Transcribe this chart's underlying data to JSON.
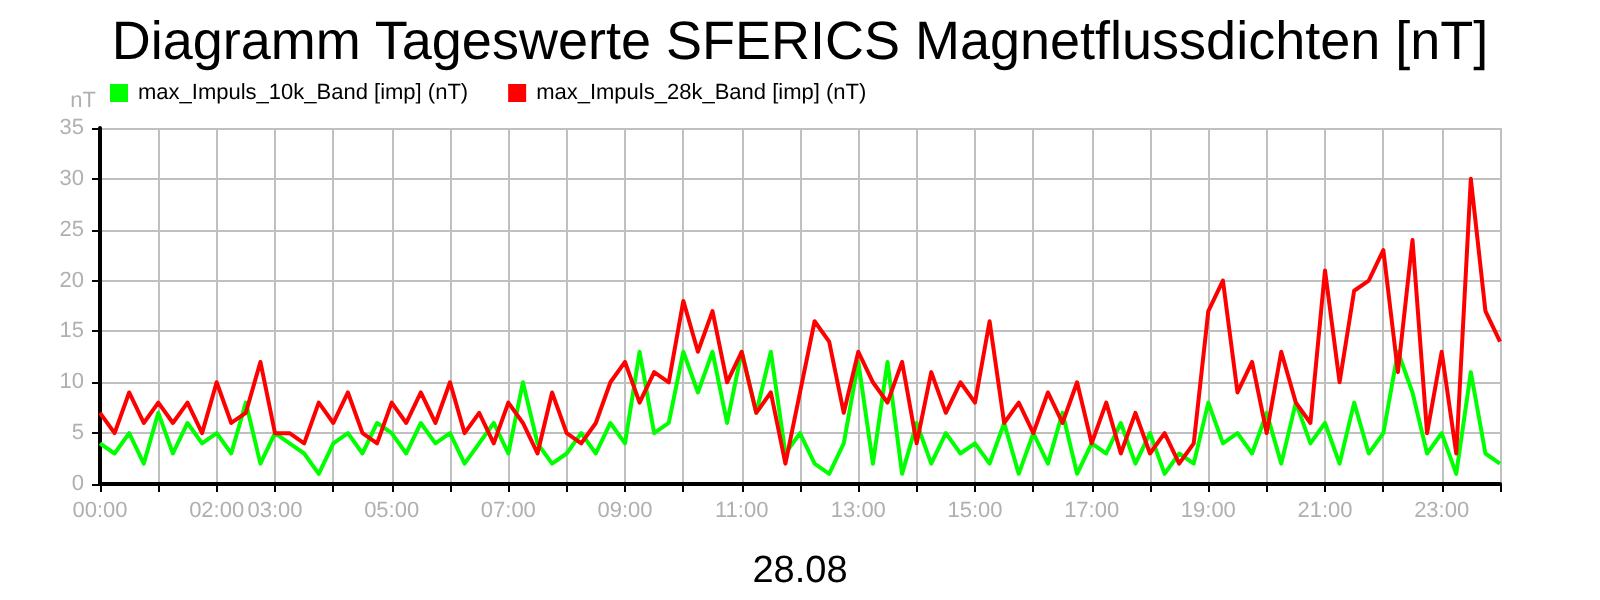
{
  "chart_data": {
    "type": "line",
    "title": "Diagramm Tageswerte SFERICS Magnetflussdichten [nT]",
    "xlabel": "28.08",
    "ylabel": "nT",
    "x": [
      0,
      0.25,
      0.5,
      0.75,
      1,
      1.25,
      1.5,
      1.75,
      2,
      2.25,
      2.5,
      2.75,
      3,
      3.25,
      3.5,
      3.75,
      4,
      4.25,
      4.5,
      4.75,
      5,
      5.25,
      5.5,
      5.75,
      6,
      6.25,
      6.5,
      6.75,
      7,
      7.25,
      7.5,
      7.75,
      8,
      8.25,
      8.5,
      8.75,
      9,
      9.25,
      9.5,
      9.75,
      10,
      10.25,
      10.5,
      10.75,
      11,
      11.25,
      11.5,
      11.75,
      12,
      12.25,
      12.5,
      12.75,
      13,
      13.25,
      13.5,
      13.75,
      14,
      14.25,
      14.5,
      14.75,
      15,
      15.25,
      15.5,
      15.75,
      16,
      16.25,
      16.5,
      16.75,
      17,
      17.25,
      17.5,
      17.75,
      18,
      18.25,
      18.5,
      18.75,
      19,
      19.25,
      19.5,
      19.75,
      20,
      20.25,
      20.5,
      20.75,
      21,
      21.25,
      21.5,
      21.75,
      22,
      22.25,
      22.5,
      22.75,
      23,
      23.25,
      23.5,
      23.75,
      24
    ],
    "series": [
      {
        "name": "max_Impuls_10k_Band [imp] (nT)",
        "color": "#00ff00",
        "values": [
          4,
          3,
          5,
          2,
          7,
          3,
          6,
          4,
          5,
          3,
          8,
          2,
          5,
          4,
          3,
          1,
          4,
          5,
          3,
          6,
          5,
          3,
          6,
          4,
          5,
          2,
          4,
          6,
          3,
          10,
          4,
          2,
          3,
          5,
          3,
          6,
          4,
          13,
          5,
          6,
          13,
          9,
          13,
          6,
          13,
          7,
          13,
          3,
          5,
          2,
          1,
          4,
          12,
          2,
          12,
          1,
          6,
          2,
          5,
          3,
          4,
          2,
          6,
          1,
          5,
          2,
          7,
          1,
          4,
          3,
          6,
          2,
          5,
          1,
          3,
          2,
          8,
          4,
          5,
          3,
          7,
          2,
          8,
          4,
          6,
          2,
          8,
          3,
          5,
          13,
          9,
          3,
          5,
          1,
          11,
          3,
          2
        ]
      },
      {
        "name": "max_Impuls_28k_Band [imp] (nT)",
        "color": "#ff0000",
        "values": [
          7,
          5,
          9,
          6,
          8,
          6,
          8,
          5,
          10,
          6,
          7,
          12,
          5,
          5,
          4,
          8,
          6,
          9,
          5,
          4,
          8,
          6,
          9,
          6,
          10,
          5,
          7,
          4,
          8,
          6,
          3,
          9,
          5,
          4,
          6,
          10,
          12,
          8,
          11,
          10,
          18,
          13,
          17,
          10,
          13,
          7,
          9,
          2,
          9,
          16,
          14,
          7,
          13,
          10,
          8,
          12,
          4,
          11,
          7,
          10,
          8,
          16,
          6,
          8,
          5,
          9,
          6,
          10,
          4,
          8,
          3,
          7,
          3,
          5,
          2,
          4,
          17,
          20,
          9,
          12,
          5,
          13,
          8,
          6,
          21,
          10,
          19,
          20,
          23,
          11,
          24,
          5,
          13,
          3,
          30,
          17,
          14
        ]
      }
    ],
    "xlim": [
      0,
      24
    ],
    "xticks": [
      {
        "value": 0,
        "label": "00:00"
      },
      {
        "value": 1,
        "label": null
      },
      {
        "value": 2,
        "label": "02:00"
      },
      {
        "value": 3,
        "label": "03:00"
      },
      {
        "value": 4,
        "label": null
      },
      {
        "value": 5,
        "label": "05:00"
      },
      {
        "value": 6,
        "label": null
      },
      {
        "value": 7,
        "label": "07:00"
      },
      {
        "value": 8,
        "label": null
      },
      {
        "value": 9,
        "label": "09:00"
      },
      {
        "value": 10,
        "label": null
      },
      {
        "value": 11,
        "label": "11:00"
      },
      {
        "value": 12,
        "label": null
      },
      {
        "value": 13,
        "label": "13:00"
      },
      {
        "value": 14,
        "label": null
      },
      {
        "value": 15,
        "label": "15:00"
      },
      {
        "value": 16,
        "label": null
      },
      {
        "value": 17,
        "label": "17:00"
      },
      {
        "value": 18,
        "label": null
      },
      {
        "value": 19,
        "label": "19:00"
      },
      {
        "value": 20,
        "label": null
      },
      {
        "value": 21,
        "label": "21:00"
      },
      {
        "value": 22,
        "label": null
      },
      {
        "value": 23,
        "label": "23:00"
      },
      {
        "value": 24,
        "label": null
      }
    ],
    "ylim": [
      0,
      35
    ],
    "yticks": [
      0,
      5,
      10,
      15,
      20,
      25,
      30,
      35
    ],
    "grid": true,
    "legend": "top left",
    "marker": "none",
    "line_style": "solid"
  }
}
